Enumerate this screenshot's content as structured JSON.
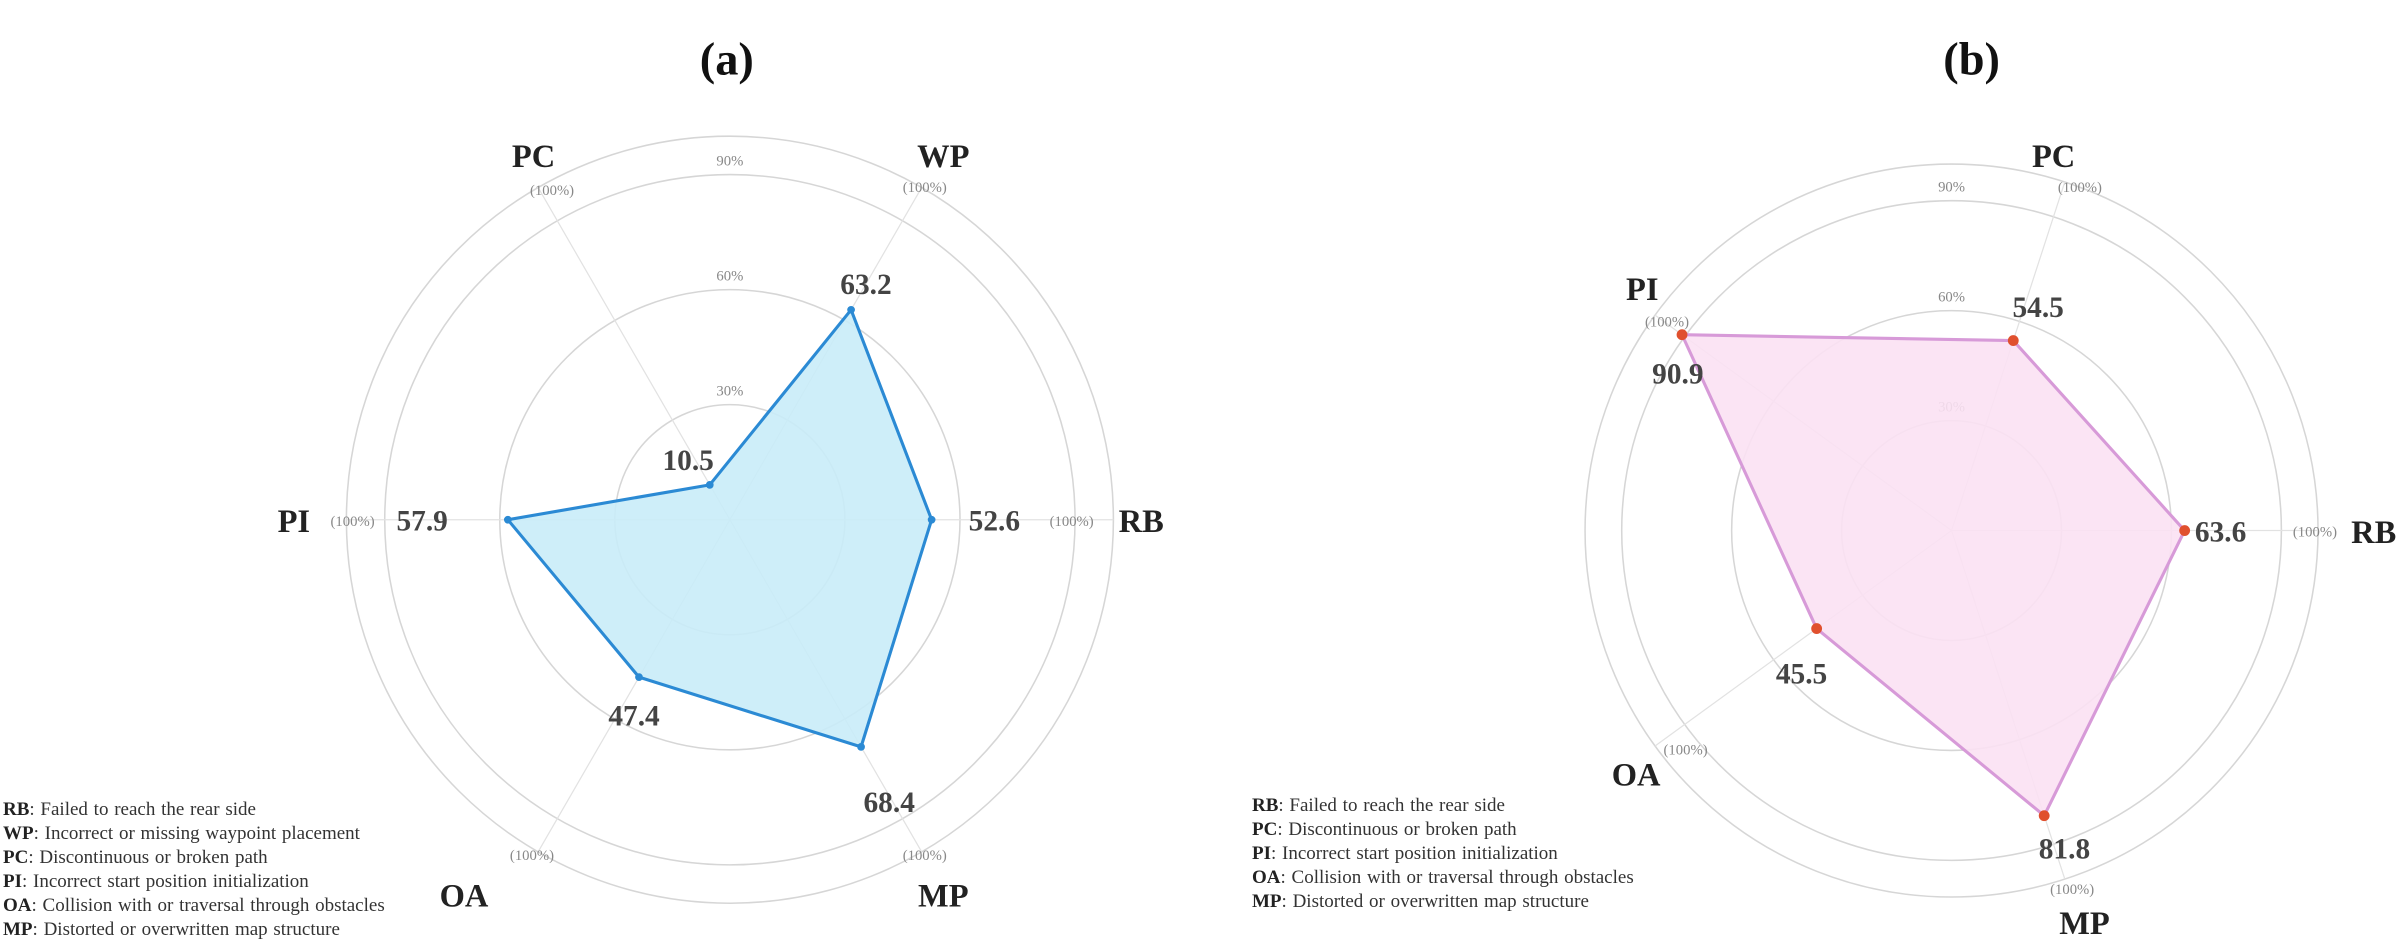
{
  "chart_data": [
    {
      "type": "radar",
      "title": "(a)",
      "axes": [
        "RB",
        "WP",
        "PC",
        "PI",
        "OA",
        "MP"
      ],
      "axis_max_label": "(100%)",
      "values": [
        52.6,
        63.2,
        10.5,
        57.9,
        47.4,
        68.4
      ],
      "value_labels": [
        "52.6",
        "63.2",
        "10.5",
        "57.9",
        "47.4",
        "68.4"
      ],
      "ticks": [
        "30%",
        "60%",
        "90%"
      ],
      "tick_values": [
        30,
        60,
        90
      ],
      "range": [
        0,
        100
      ],
      "colors": {
        "line": "#2b8ad4",
        "fill": "#c9ecf8",
        "marker": "#2b8ad4"
      },
      "legend": [
        {
          "code": "RB",
          "text": ": Failed to reach the rear side"
        },
        {
          "code": "WP",
          "text": ": Incorrect or missing waypoint placement"
        },
        {
          "code": "PC",
          "text": ": Discontinuous or broken path"
        },
        {
          "code": "PI",
          "text": ": Incorrect start position initialization"
        },
        {
          "code": "OA",
          "text": ": Collision with or traversal through obstacles"
        },
        {
          "code": "MP",
          "text": ": Distorted or overwritten map structure"
        }
      ],
      "legend_placement": "bottom-left"
    },
    {
      "type": "radar",
      "title": "(b)",
      "axes": [
        "RB",
        "PC",
        "PI",
        "OA",
        "MP"
      ],
      "axis_max_label": "(100%)",
      "values": [
        63.6,
        54.5,
        90.9,
        45.5,
        81.8
      ],
      "value_labels": [
        "63.6",
        "54.5",
        "90.9",
        "45.5",
        "81.8"
      ],
      "ticks": [
        "30%",
        "60%",
        "90%"
      ],
      "tick_values": [
        30,
        60,
        90
      ],
      "range": [
        0,
        100
      ],
      "colors": {
        "line": "#d79ad8",
        "fill": "#fbe1f3",
        "marker": "#e0502e"
      },
      "legend": [
        {
          "code": "RB",
          "text": ": Failed to reach the rear side"
        },
        {
          "code": "PC",
          "text": ": Discontinuous or broken path"
        },
        {
          "code": "PI",
          "text": ": Incorrect start position initialization"
        },
        {
          "code": "OA",
          "text": ": Collision with or traversal through obstacles"
        },
        {
          "code": "MP",
          "text": ": Distorted or overwritten map structure"
        }
      ],
      "legend_placement": "bottom-left"
    }
  ]
}
